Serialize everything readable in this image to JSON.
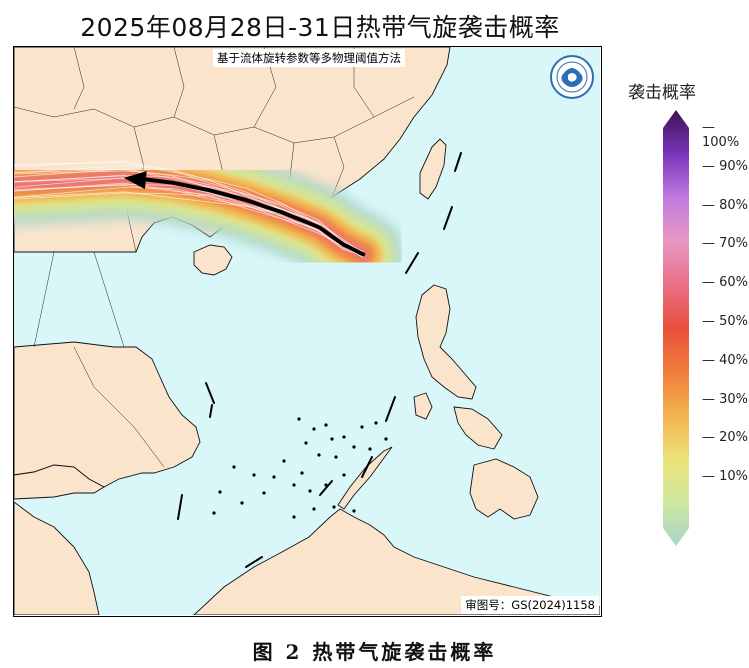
{
  "title": "2025年08月28日-31日热带气旋袭击概率",
  "method_note": "基于流体旋转参数等多物理阈值方法",
  "review_number": "审图号：GS(2024)1158",
  "caption": "图 2   热带气旋袭击概率",
  "colorbar": {
    "title": "袭击概率",
    "ticks": [
      "10%",
      "20%",
      "30%",
      "40%",
      "50%",
      "60%",
      "70%",
      "80%",
      "90%",
      "100%"
    ],
    "colors": [
      "#a9d3cc",
      "#cde9a0",
      "#ece27a",
      "#f3b44f",
      "#f07d3c",
      "#e9503c",
      "#e97088",
      "#e898c3",
      "#c07ae0",
      "#7a34b8",
      "#3c1458"
    ]
  },
  "map_data": {
    "colors": {
      "land": "#fae4cc",
      "sea": "#d9f7f8",
      "track": "#000000"
    },
    "extent_lon": [
      103.0,
      127.0
    ],
    "extent_lat": [
      4.0,
      27.0
    ],
    "forecast_track": [
      [
        117.3,
        18.6
      ],
      [
        116.5,
        19.0
      ],
      [
        115.5,
        19.7
      ],
      [
        114.0,
        20.3
      ],
      [
        112.5,
        20.8
      ],
      [
        111.0,
        21.2
      ],
      [
        109.5,
        21.5
      ],
      [
        107.5,
        21.7
      ]
    ],
    "arrow_direction": "west"
  }
}
